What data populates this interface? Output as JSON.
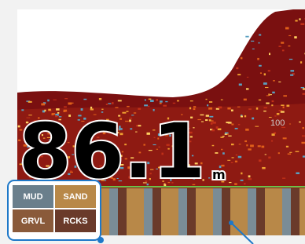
{
  "depth": {
    "value": "86.1",
    "unit": "m"
  },
  "scale_label": "100",
  "legend": {
    "items": [
      "MUD",
      "SAND",
      "GRVL",
      "RCKS"
    ]
  }
}
